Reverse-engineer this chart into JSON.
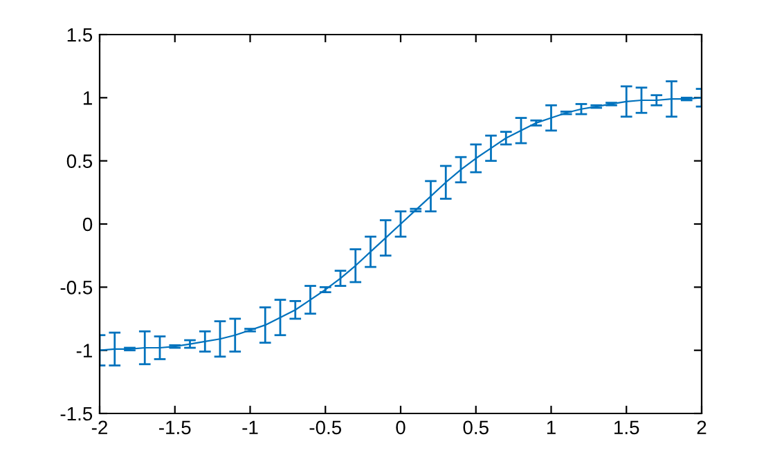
{
  "chart_data": {
    "type": "line",
    "x": [
      -2,
      -1.9,
      -1.8,
      -1.7,
      -1.6,
      -1.5,
      -1.4,
      -1.3,
      -1.2,
      -1.1,
      -1,
      -0.9,
      -0.8,
      -0.7,
      -0.6,
      -0.5,
      -0.4,
      -0.3,
      -0.2,
      -0.1,
      0,
      0.1,
      0.2,
      0.3,
      0.4,
      0.5,
      0.6,
      0.7,
      0.8,
      0.9,
      1,
      1.1,
      1.2,
      1.3,
      1.4,
      1.5,
      1.6,
      1.7,
      1.8,
      1.9,
      2
    ],
    "series": [
      {
        "color": "#0072bd",
        "values": [
          -1.0,
          -0.99,
          -0.99,
          -0.98,
          -0.98,
          -0.97,
          -0.95,
          -0.93,
          -0.91,
          -0.88,
          -0.84,
          -0.8,
          -0.74,
          -0.68,
          -0.6,
          -0.52,
          -0.43,
          -0.33,
          -0.22,
          -0.11,
          0,
          0.11,
          0.22,
          0.33,
          0.43,
          0.52,
          0.6,
          0.68,
          0.74,
          0.8,
          0.84,
          0.88,
          0.91,
          0.93,
          0.95,
          0.97,
          0.98,
          0.98,
          0.99,
          0.99,
          1.0
        ],
        "errors": [
          0.12,
          0.13,
          0.01,
          0.13,
          0.09,
          0.01,
          0.03,
          0.08,
          0.14,
          0.13,
          0.01,
          0.14,
          0.14,
          0.07,
          0.11,
          0.02,
          0.06,
          0.13,
          0.12,
          0.14,
          0.1,
          0.01,
          0.12,
          0.13,
          0.1,
          0.11,
          0.1,
          0.05,
          0.1,
          0.02,
          0.1,
          0.01,
          0.04,
          0.01,
          0.01,
          0.12,
          0.1,
          0.04,
          0.14,
          0.01,
          0.07
        ]
      }
    ],
    "xlim": [
      -2,
      2
    ],
    "xticks": [
      -2,
      -1.5,
      -1,
      -0.5,
      0,
      0.5,
      1,
      1.5,
      2
    ],
    "ylim": [
      -1.5,
      1.5
    ],
    "yticks": [
      -1.5,
      -1,
      -0.5,
      0,
      0.5,
      1,
      1.5
    ],
    "grid": false,
    "marker": "none",
    "line_style": "solid"
  }
}
